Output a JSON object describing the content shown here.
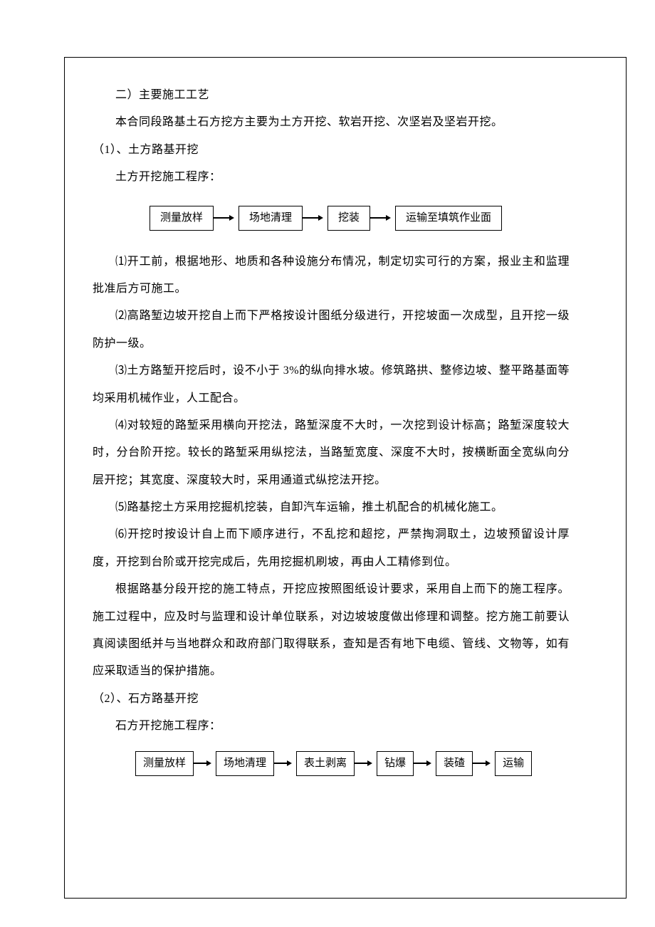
{
  "heading_main": "二）主要施工工艺",
  "intro": "本合同段路基土石方挖方主要为土方开挖、软岩开挖、次坚岩及坚岩开挖。",
  "section1": {
    "title": "（1）、土方路基开挖",
    "subtitle": "土方开挖施工程序：",
    "flow": {
      "type": "flowchart",
      "nodes": [
        "测量放样",
        "场地清理",
        "挖装",
        "运输至填筑作业面"
      ],
      "box_border": "#000000",
      "box_bg": "#ffffff",
      "arrow_color": "#000000",
      "font_size": 15
    },
    "items": [
      "⑴开工前，根据地形、地质和各种设施分布情况，制定切实可行的方案，报业主和监理批准后方可施工。",
      "⑵高路堑边坡开挖自上而下严格按设计图纸分级进行，开挖坡面一次成型，且开挖一级防护一级。",
      "⑶土方路堑开挖后时，设不小于 3%的纵向排水坡。修筑路拱、整修边坡、整平路基面等均采用机械作业，人工配合。",
      "⑷对较短的路堑采用横向开挖法，路堑深度不大时，一次挖到设计标高；路堑深度较大时，分台阶开挖。较长的路堑采用纵挖法，当路堑宽度、深度不大时，按横断面全宽纵向分层开挖；其宽度、深度较大时，采用通道式纵挖法开挖。",
      "⑸路基挖土方采用挖掘机挖装，自卸汽车运输，推土机配合的机械化施工。",
      "⑹开挖时按设计自上而下顺序进行，不乱挖和超挖，严禁掏洞取土，边坡预留设计厚度，开挖到台阶或开挖完成后，先用挖掘机刷坡，再由人工精修到位。"
    ],
    "summary": "根据路基分段开挖的施工特点，开挖应按照图纸设计要求，采用自上而下的施工程序。施工过程中，应及时与监理和设计单位联系，对边坡坡度做出修理和调整。挖方施工前要认真阅读图纸并与当地群众和政府部门取得联系，查知是否有地下电缆、管线、文物等，如有应采取适当的保护措施。"
  },
  "section2": {
    "title": "（2）、石方路基开挖",
    "subtitle": "石方开挖施工程序：",
    "flow": {
      "type": "flowchart",
      "nodes": [
        "测量放样",
        "场地清理",
        "表土剥离",
        "钻爆",
        "装碴",
        "运输"
      ],
      "box_border": "#000000",
      "box_bg": "#ffffff",
      "arrow_color": "#000000",
      "font_size": 15
    }
  },
  "style": {
    "page_bg": "#ffffff",
    "text_color": "#000000",
    "border_color": "#000000",
    "font_family": "SimSun",
    "base_font_size": 16,
    "line_height": 2.4
  }
}
